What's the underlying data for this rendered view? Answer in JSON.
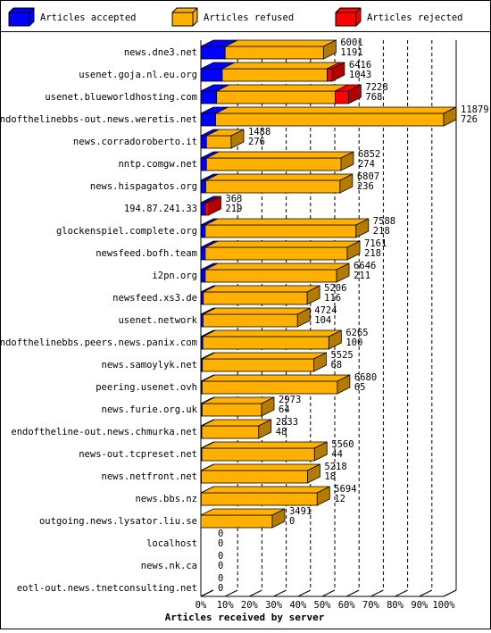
{
  "chart_data": {
    "type": "bar3d",
    "orientation": "horizontal",
    "stacked": true,
    "x_label": "Articles received by server",
    "categories": [
      "news.dne3.net",
      "usenet.goja.nl.eu.org",
      "usenet.blueworldhosting.com",
      "endofthelinebbs-out.news.weretis.net",
      "news.corradoroberto.it",
      "nntp.comgw.net",
      "news.hispagatos.org",
      "194.87.241.33",
      "glockenspiel.complete.org",
      "newsfeed.bofh.team",
      "i2pn.org",
      "newsfeed.xs3.de",
      "usenet.network",
      "endofthelinebbs.peers.news.panix.com",
      "news.samoylyk.net",
      "peering.usenet.ovh",
      "news.furie.org.uk",
      "endoftheline-out.news.chmurka.net",
      "news-out.tcpreset.net",
      "news.netfront.net",
      "news.bbs.nz",
      "outgoing.news.lysator.liu.se",
      "localhost",
      "news.nk.ca",
      "eotl-out.news.tnetconsulting.net"
    ],
    "series": [
      {
        "name": "Articles accepted",
        "color": "#0000ff",
        "values": [
          10.0,
          8.8,
          6.5,
          6.1,
          2.3,
          2.3,
          2.0,
          1.8,
          1.8,
          1.8,
          1.8,
          1.0,
          0.9,
          0.8,
          0.6,
          0.5,
          0.5,
          0.4,
          0.4,
          0.2,
          0.1,
          0,
          0,
          0,
          0
        ]
      },
      {
        "name": "Articles refused",
        "color": "#ffb000",
        "values": [
          40.5,
          43.2,
          48.8,
          93.9,
          10.2,
          55.4,
          55.3,
          0,
          62.1,
          58.5,
          54.1,
          42.8,
          38.9,
          51.9,
          45.9,
          55.7,
          24.5,
          23.4,
          46.4,
          43.7,
          47.8,
          29.4,
          0,
          0,
          0
        ]
      },
      {
        "name": "Articles rejected",
        "color": "#ff0000",
        "values": [
          0,
          2,
          5.5,
          0,
          0,
          0,
          0,
          1.3,
          0,
          0,
          0,
          0,
          0,
          0,
          0,
          0,
          0,
          0,
          0,
          0,
          0,
          0,
          0,
          0,
          0
        ]
      }
    ],
    "row_labels": [
      [
        6001,
        1191
      ],
      [
        6416,
        1043
      ],
      [
        7228,
        768
      ],
      [
        11879,
        726
      ],
      [
        1488,
        276
      ],
      [
        6852,
        274
      ],
      [
        6807,
        236
      ],
      [
        363,
        219
      ],
      [
        7588,
        218
      ],
      [
        7161,
        218
      ],
      [
        6646,
        211
      ],
      [
        5206,
        116
      ],
      [
        4724,
        104
      ],
      [
        6265,
        100
      ],
      [
        5525,
        68
      ],
      [
        6680,
        65
      ],
      [
        2973,
        64
      ],
      [
        2833,
        48
      ],
      [
        5560,
        44
      ],
      [
        5218,
        18
      ],
      [
        5694,
        12
      ],
      [
        3491,
        0
      ],
      [
        0,
        0
      ],
      [
        0,
        0
      ],
      [
        0,
        0
      ]
    ],
    "xlim": [
      0,
      100
    ],
    "xticks": [
      {
        "value": 0,
        "label": "0%"
      },
      {
        "value": 10,
        "label": "10%"
      },
      {
        "value": 20,
        "label": "20%"
      },
      {
        "value": 30,
        "label": "30%"
      },
      {
        "value": 40,
        "label": "40%"
      },
      {
        "value": 50,
        "label": "50%"
      },
      {
        "value": 60,
        "label": "60%"
      },
      {
        "value": 70,
        "label": "70%"
      },
      {
        "value": 80,
        "label": "80%"
      },
      {
        "value": 90,
        "label": "90%"
      },
      {
        "value": 100,
        "label": "100%"
      }
    ],
    "grid": true
  }
}
